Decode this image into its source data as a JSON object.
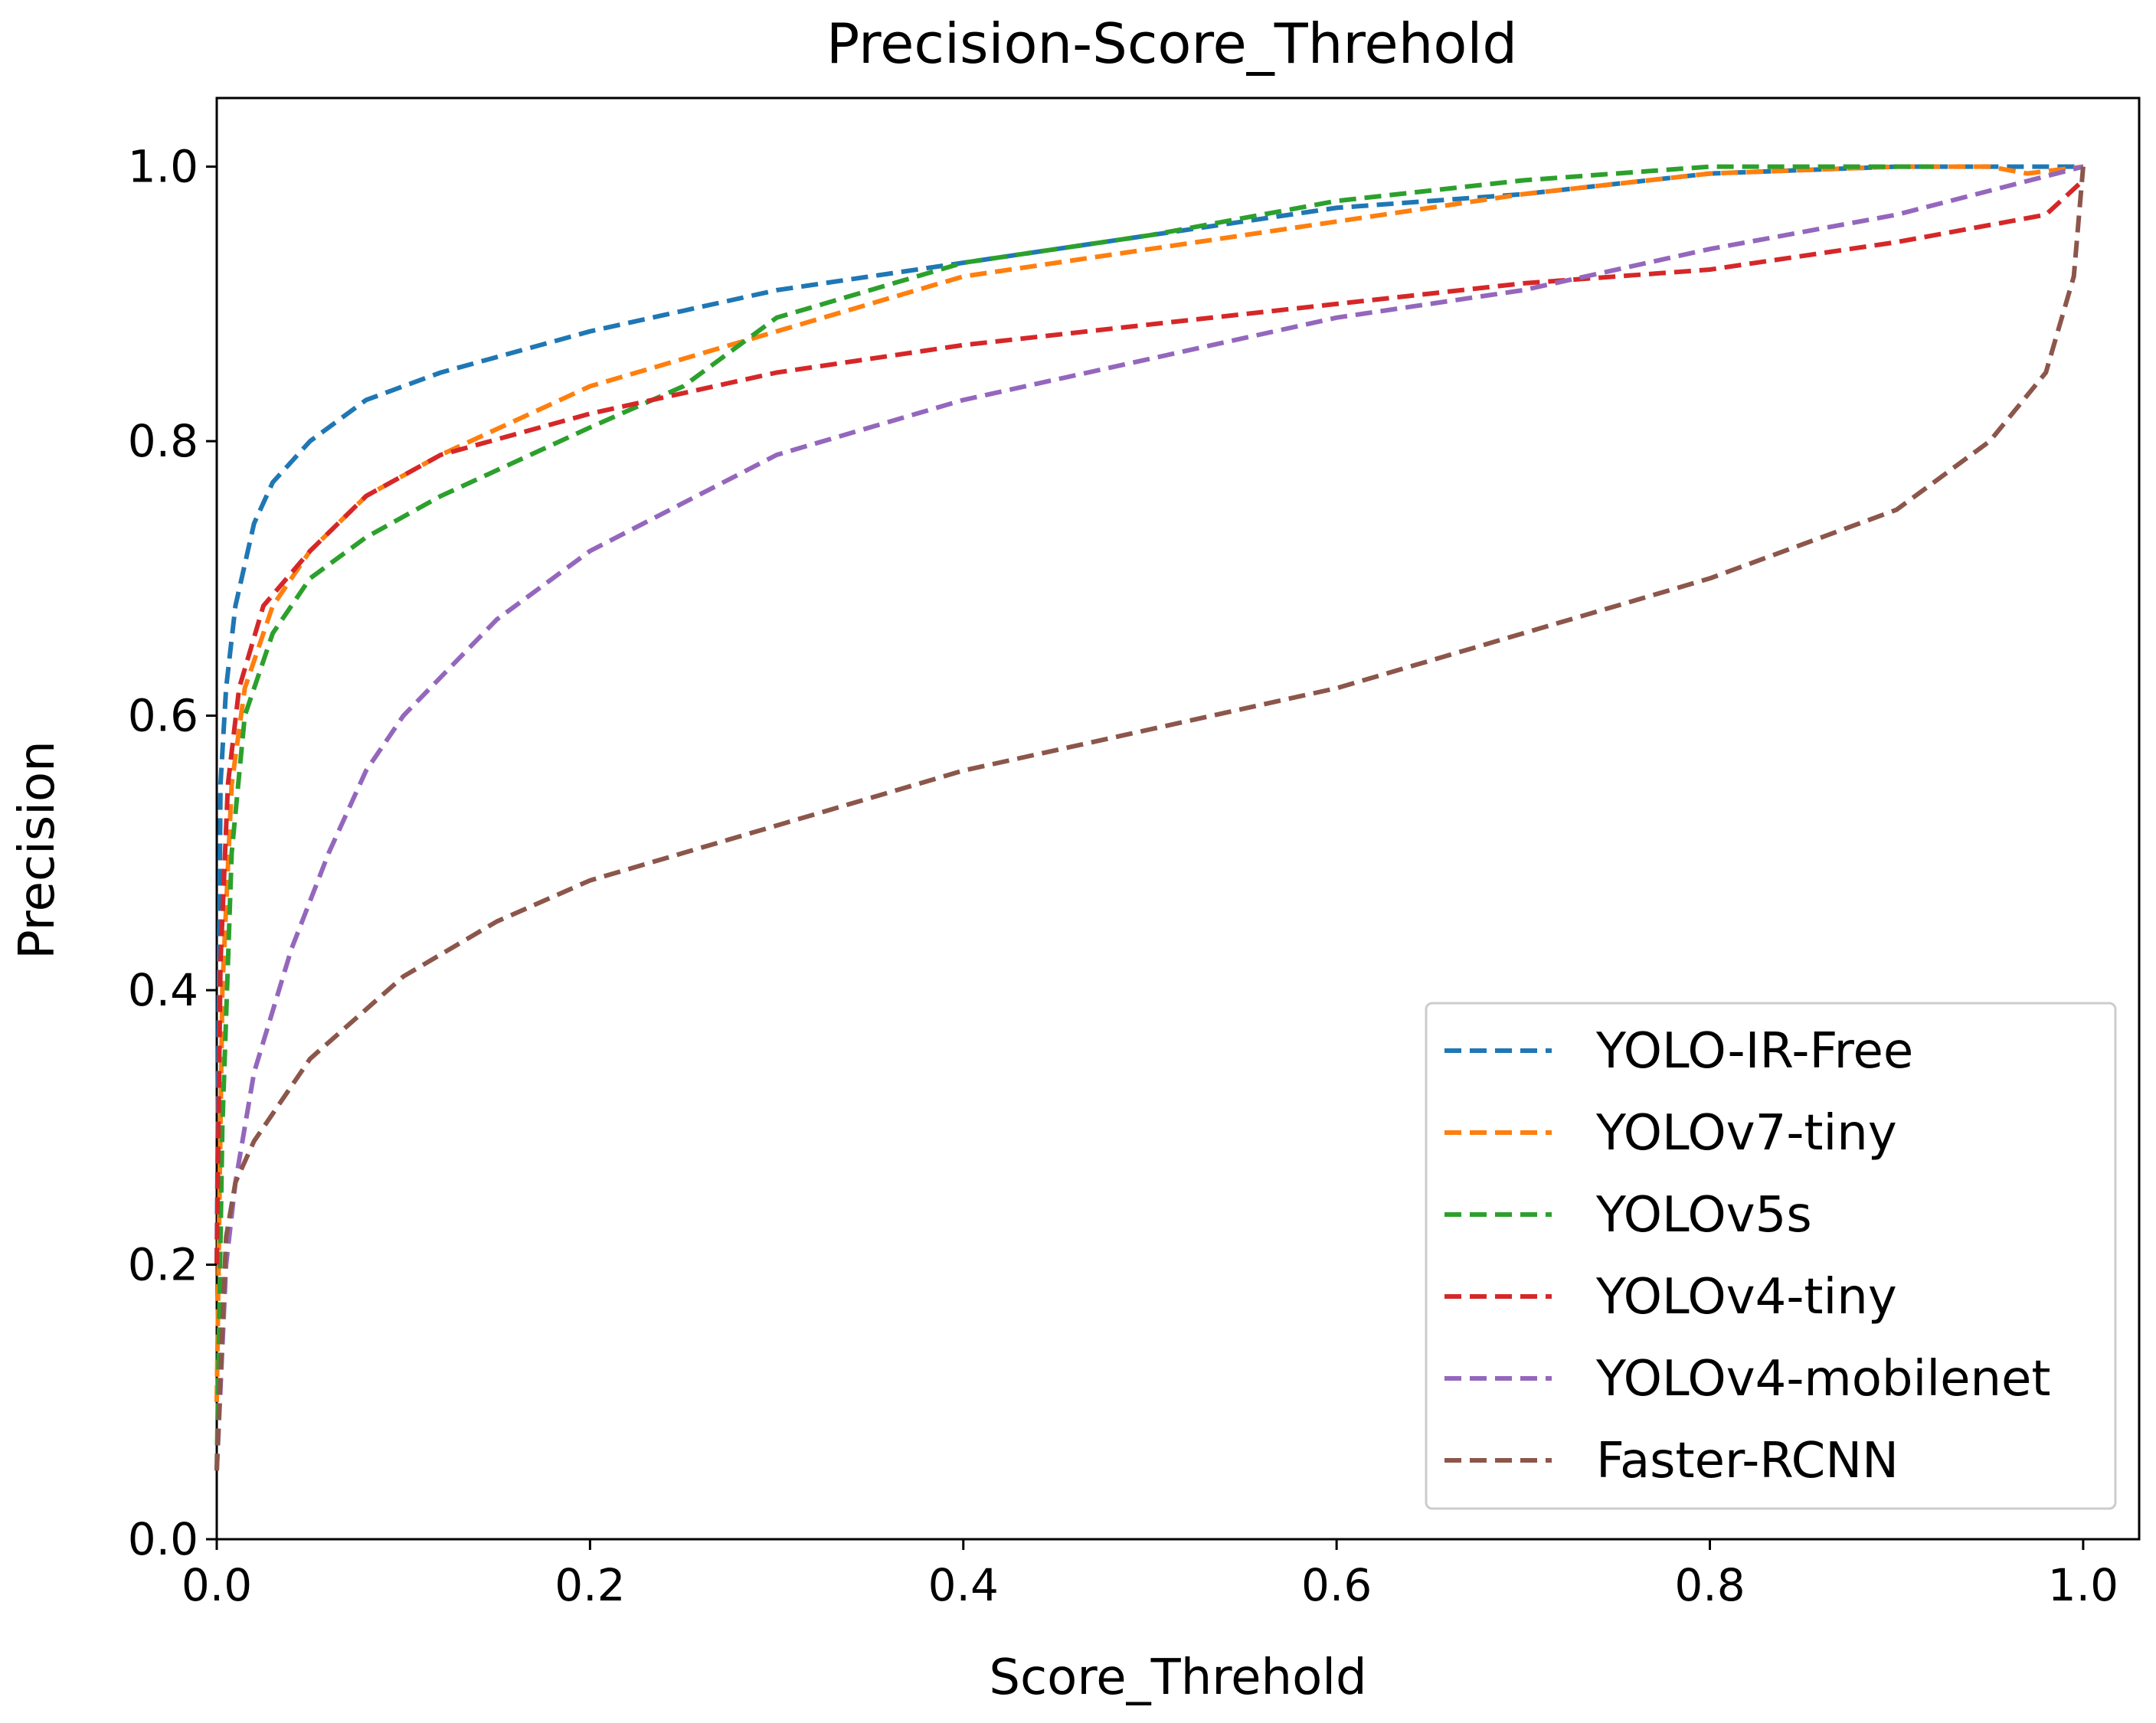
{
  "chart_data": {
    "type": "line",
    "title": "Precision-Score_Threhold",
    "xlabel": "Score_Threhold",
    "ylabel": "Precision",
    "xlim": [
      0.0,
      1.03
    ],
    "ylim": [
      0.0,
      1.05
    ],
    "x_ticks": [
      "0.0",
      "0.2",
      "0.4",
      "0.6",
      "0.8",
      "1.0"
    ],
    "y_ticks": [
      "0.0",
      "0.2",
      "0.4",
      "0.6",
      "0.8",
      "1.0"
    ],
    "grid": false,
    "legend_position": "lower-right",
    "line_style": "dashed",
    "series": [
      {
        "name": "YOLO-IR-Free",
        "color": "#1f77b4",
        "points": [
          [
            0.0,
            0.2
          ],
          [
            0.002,
            0.55
          ],
          [
            0.005,
            0.62
          ],
          [
            0.01,
            0.68
          ],
          [
            0.02,
            0.74
          ],
          [
            0.03,
            0.77
          ],
          [
            0.05,
            0.8
          ],
          [
            0.08,
            0.83
          ],
          [
            0.12,
            0.85
          ],
          [
            0.2,
            0.88
          ],
          [
            0.3,
            0.91
          ],
          [
            0.4,
            0.93
          ],
          [
            0.5,
            0.95
          ],
          [
            0.6,
            0.97
          ],
          [
            0.7,
            0.98
          ],
          [
            0.8,
            0.995
          ],
          [
            0.9,
            1.0
          ],
          [
            1.0,
            1.0
          ]
        ]
      },
      {
        "name": "YOLOv7-tiny",
        "color": "#ff7f0e",
        "points": [
          [
            0.0,
            0.1
          ],
          [
            0.003,
            0.4
          ],
          [
            0.008,
            0.55
          ],
          [
            0.015,
            0.62
          ],
          [
            0.03,
            0.68
          ],
          [
            0.05,
            0.72
          ],
          [
            0.08,
            0.76
          ],
          [
            0.12,
            0.79
          ],
          [
            0.2,
            0.84
          ],
          [
            0.3,
            0.88
          ],
          [
            0.4,
            0.92
          ],
          [
            0.5,
            0.94
          ],
          [
            0.6,
            0.96
          ],
          [
            0.7,
            0.98
          ],
          [
            0.8,
            0.995
          ],
          [
            0.9,
            1.0
          ],
          [
            0.95,
            1.0
          ],
          [
            0.97,
            0.995
          ],
          [
            1.0,
            1.0
          ]
        ]
      },
      {
        "name": "YOLOv5s",
        "color": "#2ca02c",
        "points": [
          [
            0.0,
            0.05
          ],
          [
            0.003,
            0.3
          ],
          [
            0.008,
            0.5
          ],
          [
            0.015,
            0.6
          ],
          [
            0.03,
            0.66
          ],
          [
            0.05,
            0.7
          ],
          [
            0.08,
            0.73
          ],
          [
            0.12,
            0.76
          ],
          [
            0.2,
            0.81
          ],
          [
            0.25,
            0.84
          ],
          [
            0.3,
            0.89
          ],
          [
            0.4,
            0.93
          ],
          [
            0.5,
            0.95
          ],
          [
            0.6,
            0.975
          ],
          [
            0.7,
            0.99
          ],
          [
            0.8,
            1.0
          ],
          [
            0.92,
            1.0
          ]
        ]
      },
      {
        "name": "YOLOv4-tiny",
        "color": "#d62728",
        "points": [
          [
            0.0,
            0.2
          ],
          [
            0.002,
            0.42
          ],
          [
            0.006,
            0.55
          ],
          [
            0.012,
            0.62
          ],
          [
            0.025,
            0.68
          ],
          [
            0.05,
            0.72
          ],
          [
            0.08,
            0.76
          ],
          [
            0.12,
            0.79
          ],
          [
            0.2,
            0.82
          ],
          [
            0.3,
            0.85
          ],
          [
            0.4,
            0.87
          ],
          [
            0.5,
            0.885
          ],
          [
            0.6,
            0.9
          ],
          [
            0.7,
            0.915
          ],
          [
            0.8,
            0.925
          ],
          [
            0.9,
            0.945
          ],
          [
            0.98,
            0.965
          ],
          [
            1.0,
            0.99
          ]
        ]
      },
      {
        "name": "YOLOv4-mobilenet",
        "color": "#9467bd",
        "points": [
          [
            0.0,
            0.05
          ],
          [
            0.005,
            0.2
          ],
          [
            0.01,
            0.26
          ],
          [
            0.02,
            0.34
          ],
          [
            0.04,
            0.43
          ],
          [
            0.06,
            0.5
          ],
          [
            0.08,
            0.56
          ],
          [
            0.1,
            0.6
          ],
          [
            0.15,
            0.67
          ],
          [
            0.2,
            0.72
          ],
          [
            0.3,
            0.79
          ],
          [
            0.4,
            0.83
          ],
          [
            0.5,
            0.86
          ],
          [
            0.6,
            0.89
          ],
          [
            0.7,
            0.91
          ],
          [
            0.8,
            0.94
          ],
          [
            0.9,
            0.965
          ],
          [
            1.0,
            1.0
          ]
        ]
      },
      {
        "name": "Faster-RCNN",
        "color": "#8c564b",
        "points": [
          [
            0.0,
            0.05
          ],
          [
            0.005,
            0.22
          ],
          [
            0.01,
            0.26
          ],
          [
            0.02,
            0.29
          ],
          [
            0.05,
            0.35
          ],
          [
            0.1,
            0.41
          ],
          [
            0.15,
            0.45
          ],
          [
            0.2,
            0.48
          ],
          [
            0.3,
            0.52
          ],
          [
            0.4,
            0.56
          ],
          [
            0.5,
            0.59
          ],
          [
            0.6,
            0.62
          ],
          [
            0.7,
            0.66
          ],
          [
            0.8,
            0.7
          ],
          [
            0.9,
            0.75
          ],
          [
            0.95,
            0.8
          ],
          [
            0.98,
            0.85
          ],
          [
            0.995,
            0.92
          ],
          [
            1.0,
            1.0
          ]
        ]
      }
    ]
  }
}
